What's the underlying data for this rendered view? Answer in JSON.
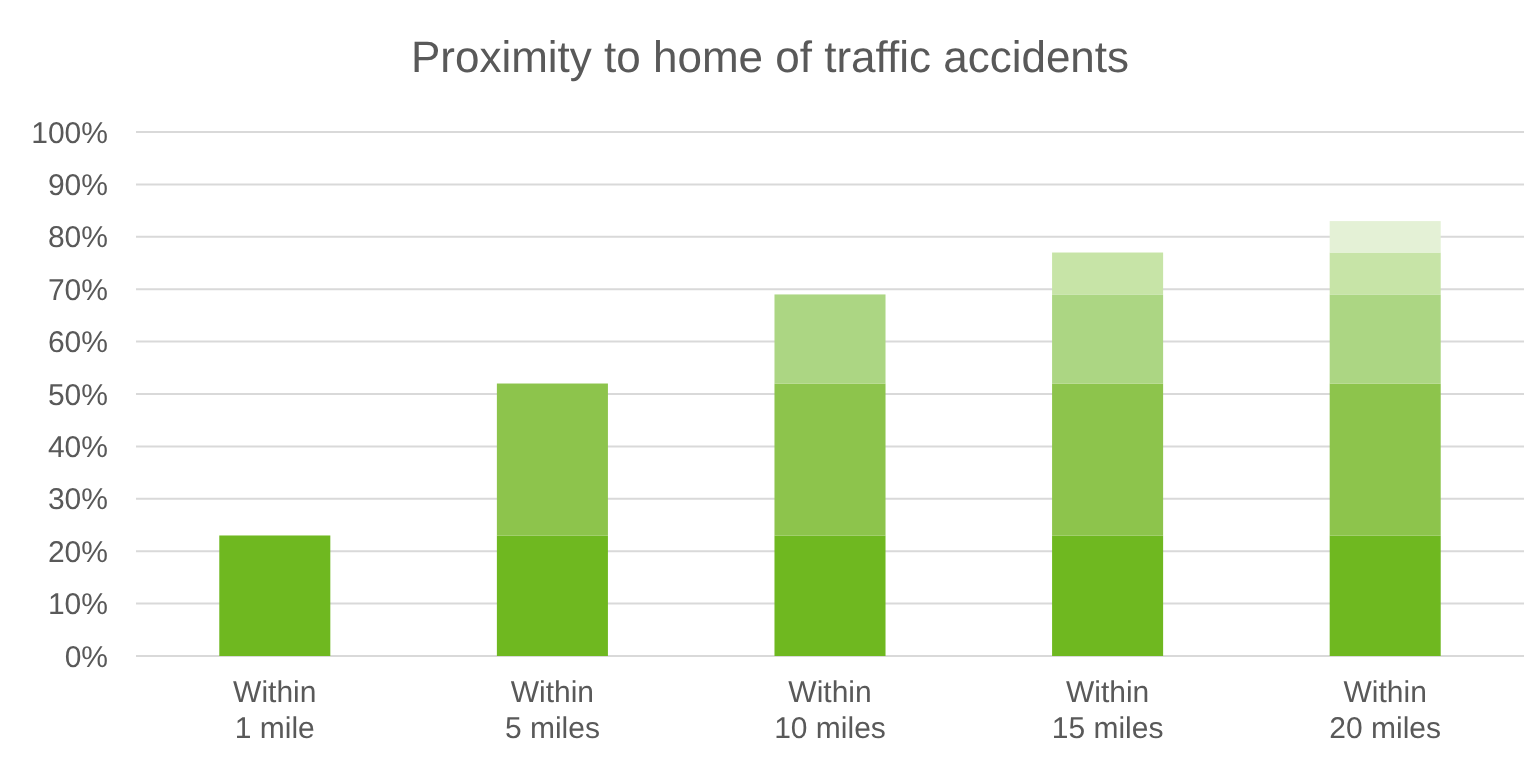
{
  "chart_data": {
    "type": "bar",
    "title": "Proximity to home of traffic accidents",
    "stacked": true,
    "categories": [
      "Within 1 mile",
      "Within 5 miles",
      "Within 10 miles",
      "Within 15 miles",
      "Within 20 miles"
    ],
    "series": [
      {
        "color": "#6fb820",
        "values": [
          23,
          23,
          23,
          23,
          23
        ]
      },
      {
        "color": "#8dc44c",
        "values": [
          null,
          29,
          29,
          29,
          29
        ]
      },
      {
        "color": "#acd683",
        "values": [
          null,
          null,
          17,
          17,
          17
        ]
      },
      {
        "color": "#c7e4a7",
        "values": [
          null,
          null,
          null,
          8,
          8
        ]
      },
      {
        "color": "#e4f1d6",
        "values": [
          null,
          null,
          null,
          null,
          6
        ]
      }
    ],
    "ylim": [
      0,
      100
    ],
    "yticks": [
      {
        "value": 0,
        "label": "0%"
      },
      {
        "value": 10,
        "label": "10%"
      },
      {
        "value": 20,
        "label": "20%"
      },
      {
        "value": 30,
        "label": "30%"
      },
      {
        "value": 40,
        "label": "40%"
      },
      {
        "value": 50,
        "label": "50%"
      },
      {
        "value": 60,
        "label": "60%"
      },
      {
        "value": 70,
        "label": "70%"
      },
      {
        "value": 80,
        "label": "80%"
      },
      {
        "value": 90,
        "label": "90%"
      },
      {
        "value": 100,
        "label": "100%"
      }
    ],
    "grid": "y"
  }
}
